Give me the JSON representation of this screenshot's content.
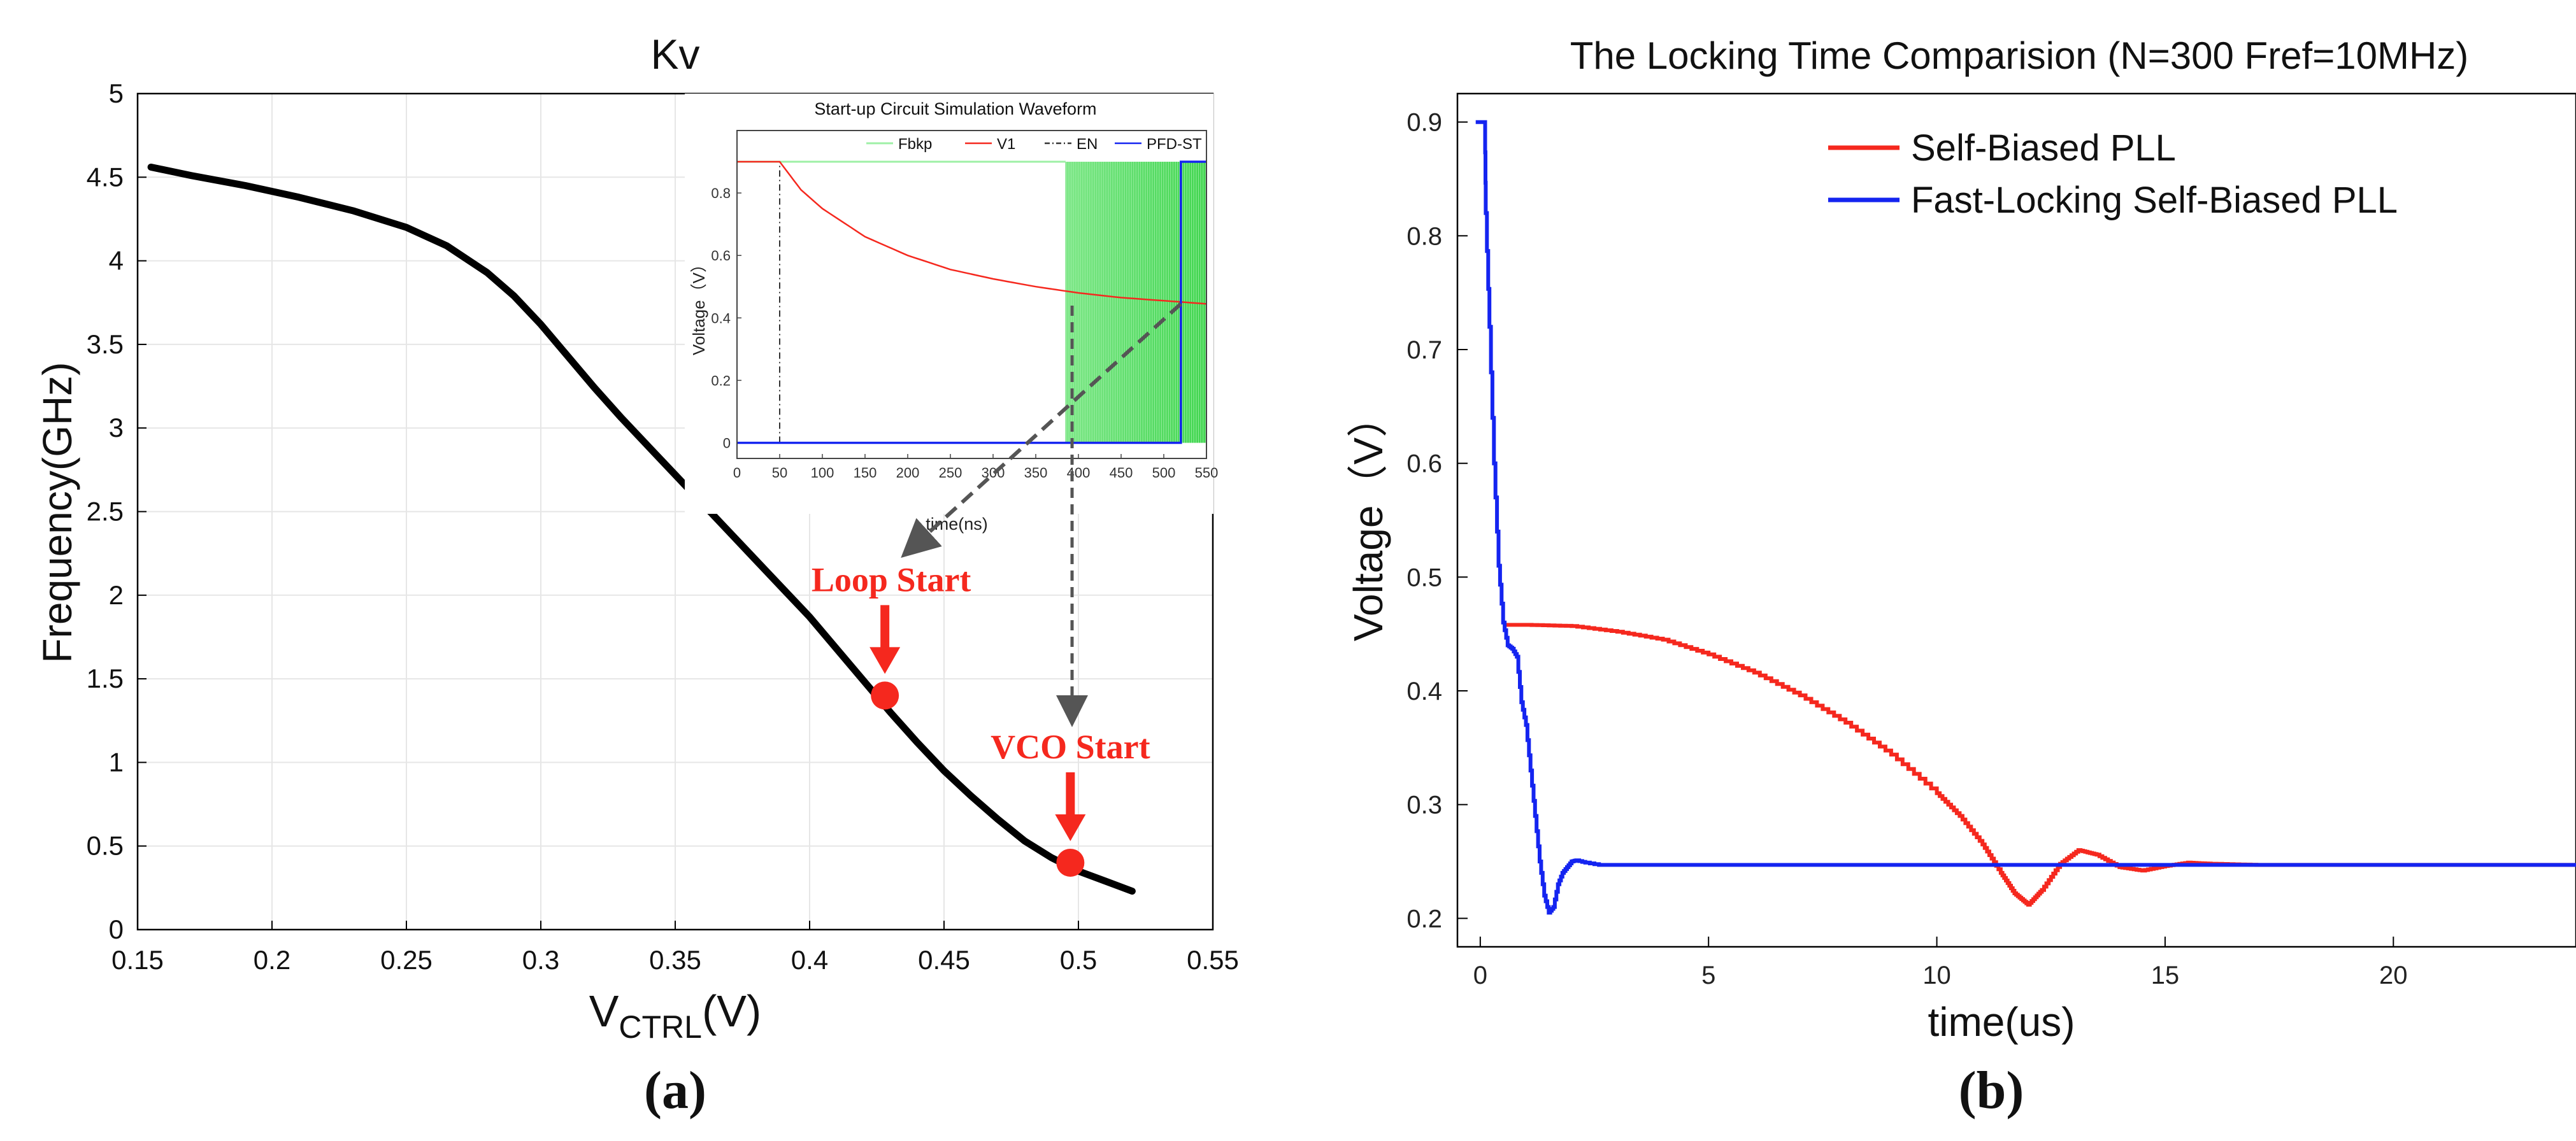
{
  "colors": {
    "curve": "#000000",
    "red": "#f5281e",
    "blue": "#1424f0",
    "green": "#22cc33",
    "greenLight": "#9ef0a6",
    "arrow": "#555555",
    "grid": "#e6e6e6"
  },
  "chart_data": [
    {
      "id": "a",
      "type": "line",
      "title": "Kv",
      "panel_label": "(a)",
      "ylabel": "Frequency(GHz)",
      "xlabel_main": "V",
      "xlabel_sub": "CTRL",
      "xlabel_unit": "(V)",
      "xlim": [
        0.15,
        0.55
      ],
      "ylim": [
        0,
        5
      ],
      "xticks": [
        "0.15",
        "0.2",
        "0.25",
        "0.3",
        "0.35",
        "0.4",
        "0.45",
        "0.5",
        "0.55"
      ],
      "yticks": [
        "0",
        "0.5",
        "1",
        "1.5",
        "2",
        "2.5",
        "3",
        "3.5",
        "4",
        "4.5",
        "5"
      ],
      "grid": true,
      "series": [
        {
          "name": "Kv",
          "x": [
            0.155,
            0.17,
            0.19,
            0.21,
            0.23,
            0.25,
            0.265,
            0.28,
            0.29,
            0.3,
            0.31,
            0.32,
            0.33,
            0.34,
            0.35,
            0.36,
            0.37,
            0.38,
            0.39,
            0.4,
            0.41,
            0.42,
            0.43,
            0.44,
            0.45,
            0.46,
            0.47,
            0.48,
            0.49,
            0.5,
            0.51,
            0.52
          ],
          "y": [
            4.56,
            4.51,
            4.45,
            4.38,
            4.3,
            4.2,
            4.09,
            3.93,
            3.79,
            3.62,
            3.43,
            3.24,
            3.06,
            2.89,
            2.72,
            2.55,
            2.38,
            2.21,
            2.04,
            1.87,
            1.68,
            1.49,
            1.3,
            1.12,
            0.95,
            0.8,
            0.66,
            0.53,
            0.43,
            0.35,
            0.29,
            0.23
          ]
        }
      ],
      "markers": [
        {
          "label": "Loop Start",
          "x": 0.428,
          "y": 1.4
        },
        {
          "label": "VCO Start",
          "x": 0.497,
          "y": 0.4
        }
      ],
      "inset": {
        "type": "line",
        "title": "Start-up Circuit Simulation Waveform",
        "xlabel": "time(ns)",
        "ylabel": "Voltage（V）",
        "xlim": [
          0,
          550
        ],
        "ylim": [
          -0.05,
          1.0
        ],
        "xticks": [
          "0",
          "50",
          "100",
          "150",
          "200",
          "250",
          "300",
          "350",
          "400",
          "450",
          "500",
          "550"
        ],
        "yticks": [
          "0",
          "0.2",
          "0.4",
          "0.6",
          "0.8"
        ],
        "legend": [
          "Fbkp",
          "V1",
          "EN",
          "PFD-ST"
        ],
        "legend_position": "top-right",
        "series": [
          {
            "name": "V1",
            "x": [
              0,
              50,
              75,
              100,
              150,
              200,
              250,
              300,
              350,
              400,
              450,
              500,
              550
            ],
            "y": [
              0.9,
              0.9,
              0.81,
              0.75,
              0.66,
              0.6,
              0.555,
              0.525,
              0.5,
              0.48,
              0.465,
              0.455,
              0.445
            ]
          },
          {
            "name": "EN",
            "x": [
              50,
              50
            ],
            "y": [
              0,
              0.9
            ]
          },
          {
            "name": "PFD-ST",
            "x": [
              0,
              520,
              520,
              550
            ],
            "y": [
              0,
              0,
              0.9,
              0.9
            ]
          },
          {
            "name": "Fbkp",
            "x_start": 385,
            "x_end": 550,
            "y": [
              0,
              0.9
            ]
          }
        ]
      }
    },
    {
      "id": "b",
      "type": "line",
      "title": "The Locking Time Comparision (N=300 Fref=10MHz)",
      "panel_label": "(b)",
      "xlabel": "time(us)",
      "ylabel": "Voltage（V）",
      "xlim": [
        -0.5,
        24
      ],
      "ylim": [
        0.175,
        0.925
      ],
      "xticks": [
        "0",
        "5",
        "10",
        "15",
        "20"
      ],
      "yticks": [
        "0.2",
        "0.3",
        "0.4",
        "0.5",
        "0.6",
        "0.7",
        "0.8",
        "0.9"
      ],
      "legend_position": "top-right",
      "series": [
        {
          "name": "Self-Biased PLL",
          "x": [
            0.5,
            1,
            2,
            3,
            4,
            5,
            6,
            7,
            8,
            9,
            10,
            10.5,
            11,
            11.4,
            11.7,
            12,
            12.3,
            12.7,
            13.1,
            13.5,
            14,
            14.5,
            15,
            15.5,
            16,
            17,
            18,
            24
          ],
          "y": [
            0.458,
            0.458,
            0.457,
            0.452,
            0.445,
            0.432,
            0.416,
            0.396,
            0.372,
            0.344,
            0.31,
            0.29,
            0.265,
            0.24,
            0.222,
            0.212,
            0.225,
            0.248,
            0.26,
            0.256,
            0.245,
            0.242,
            0.246,
            0.249,
            0.248,
            0.247,
            0.247,
            0.247
          ]
        },
        {
          "name": "Fast-Locking Self-Biased PLL",
          "x": [
            -0.1,
            0.1,
            0.12,
            0.2,
            0.3,
            0.4,
            0.5,
            0.6,
            0.7,
            0.8,
            0.9,
            1.0,
            1.1,
            1.2,
            1.3,
            1.4,
            1.5,
            1.6,
            1.7,
            1.8,
            1.9,
            2.0,
            2.1,
            2.3,
            2.6,
            3,
            5,
            10,
            24
          ],
          "y": [
            0.9,
            0.9,
            0.82,
            0.72,
            0.6,
            0.51,
            0.46,
            0.44,
            0.437,
            0.43,
            0.39,
            0.37,
            0.33,
            0.29,
            0.25,
            0.22,
            0.205,
            0.21,
            0.23,
            0.24,
            0.245,
            0.25,
            0.251,
            0.249,
            0.247,
            0.247,
            0.247,
            0.247,
            0.247
          ]
        }
      ]
    }
  ]
}
